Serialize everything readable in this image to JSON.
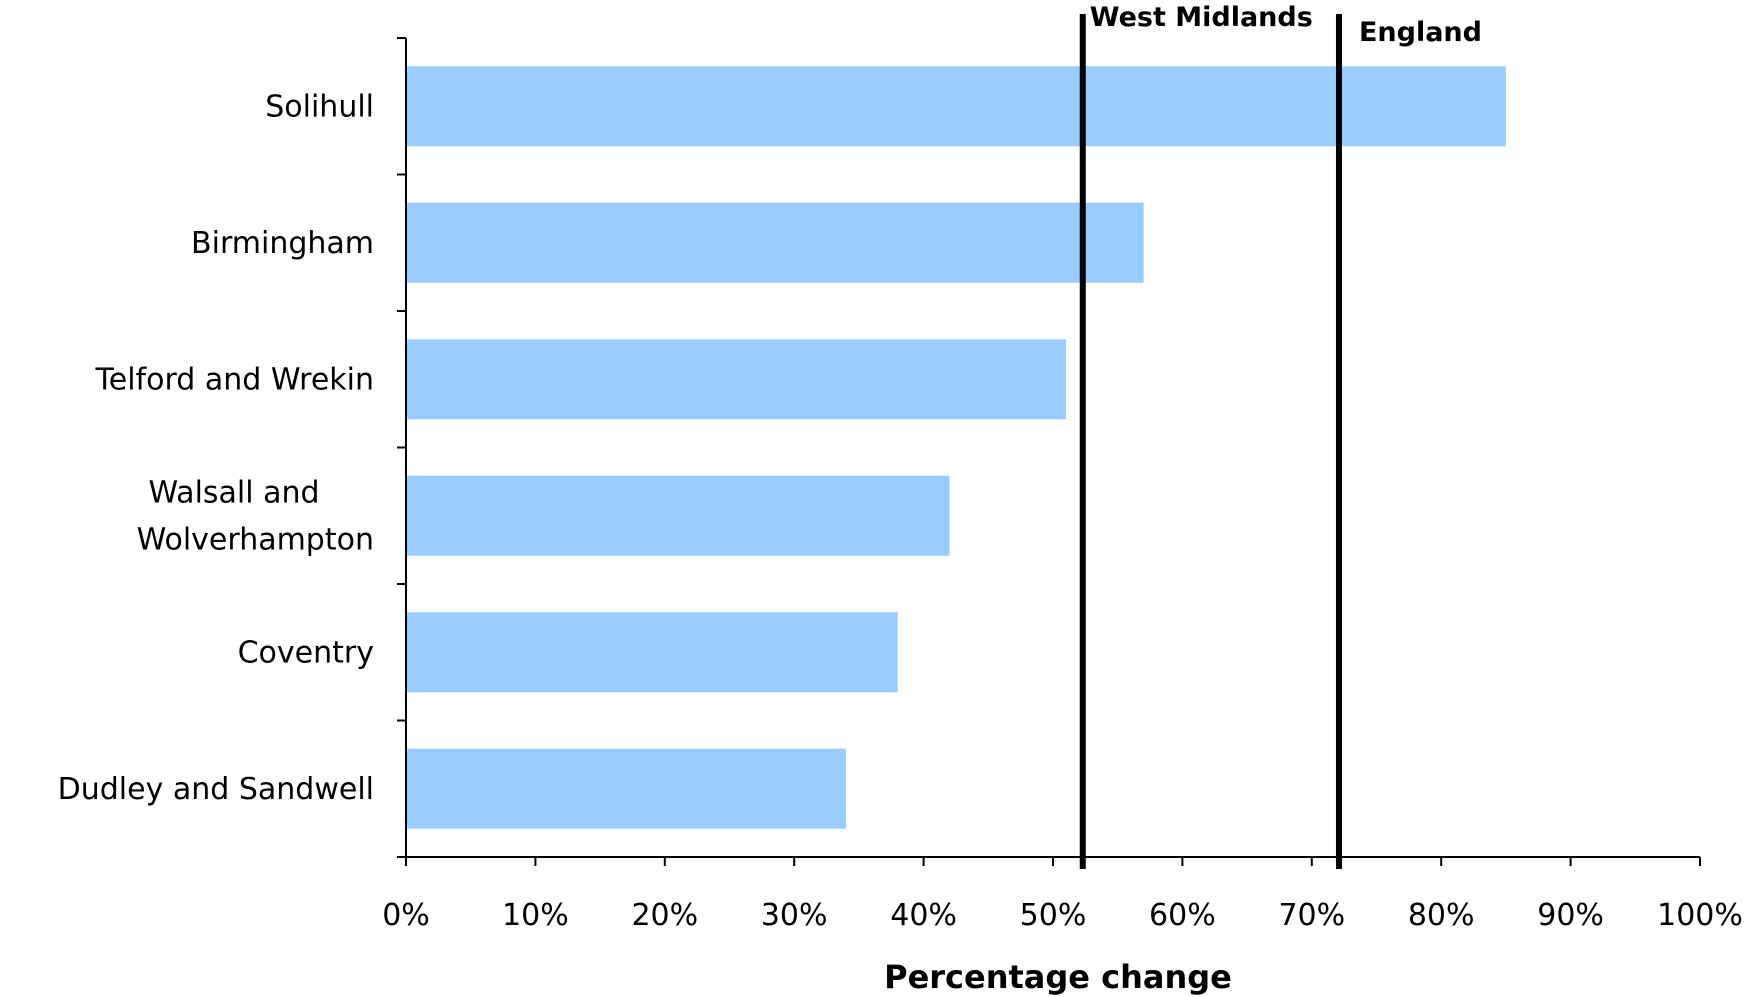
{
  "chart_data": {
    "type": "bar",
    "orientation": "horizontal",
    "categories": [
      [
        "Solihull"
      ],
      [
        "Birmingham"
      ],
      [
        "Telford and Wrekin"
      ],
      [
        "Walsall and",
        "Wolverhampton"
      ],
      [
        "Coventry"
      ],
      [
        "Dudley and Sandwell"
      ]
    ],
    "values": [
      85,
      57,
      51,
      42,
      38,
      34
    ],
    "xlabel": "Percentage change",
    "xlim": [
      0,
      100
    ],
    "xticks": [
      0,
      10,
      20,
      30,
      40,
      50,
      60,
      70,
      80,
      90,
      100
    ],
    "tick_suffix": "%",
    "reference_lines": [
      {
        "name": "West Midlands",
        "value": 52.3
      },
      {
        "name": "England",
        "value": 72.1
      }
    ],
    "bar_color": "#99ccff",
    "grid": false
  }
}
